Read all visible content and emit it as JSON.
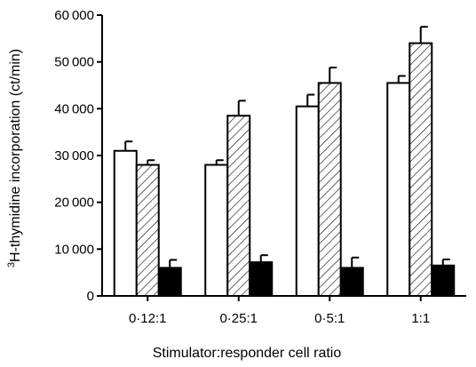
{
  "chart_data": {
    "type": "bar",
    "title": "",
    "xlabel": "Stimulator:responder cell ratio",
    "ylabel_sup": "3",
    "ylabel_main": "H-thymidine incorporation (ct/min)",
    "categories": [
      "0·12:1",
      "0·25:1",
      "0·5:1",
      "1:1"
    ],
    "ylim": [
      0,
      60000
    ],
    "yticks": [
      0,
      10000,
      20000,
      30000,
      40000,
      50000,
      60000
    ],
    "ytick_labels": [
      "0",
      "10 000",
      "20 000",
      "30 000",
      "40 000",
      "50 000",
      "60 000"
    ],
    "grid": false,
    "legend": "none",
    "series": [
      {
        "fill": "white",
        "values": [
          31000,
          28000,
          40500,
          45500
        ],
        "errors": [
          2000,
          1000,
          2500,
          1500
        ]
      },
      {
        "fill": "hatched",
        "values": [
          28000,
          38500,
          45500,
          54000
        ],
        "errors": [
          1000,
          3200,
          3300,
          3500
        ]
      },
      {
        "fill": "black",
        "values": [
          6000,
          7200,
          6000,
          6500
        ],
        "errors": [
          1700,
          1500,
          2200,
          1300
        ]
      }
    ]
  }
}
